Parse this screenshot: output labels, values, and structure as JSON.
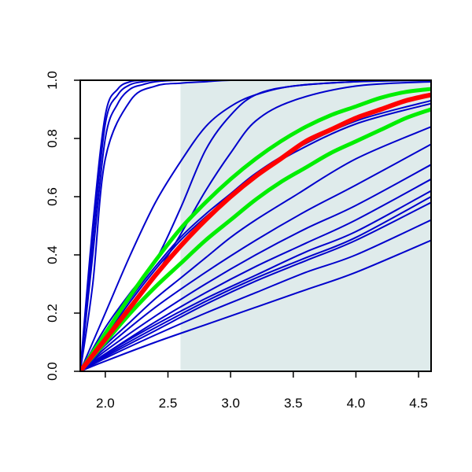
{
  "chart_data": {
    "type": "line",
    "title": "",
    "xlabel": "",
    "ylabel": "",
    "xlim": [
      1.8,
      4.6
    ],
    "ylim": [
      0,
      1
    ],
    "x_ticks": [
      2.0,
      2.5,
      3.0,
      3.5,
      4.0,
      4.5
    ],
    "x_tick_labels": [
      "2.0",
      "2.5",
      "3.0",
      "3.5",
      "4.0",
      "4.5"
    ],
    "y_ticks": [
      0.0,
      0.2,
      0.4,
      0.6,
      0.8,
      1.0
    ],
    "y_tick_labels": [
      "0.0",
      "0.2",
      "0.4",
      "0.6",
      "0.8",
      "1.0"
    ],
    "grid": false,
    "legend": "none",
    "shaded_region": {
      "x_start": 2.6,
      "x_end": 4.6,
      "y_start": 0,
      "y_end": 1,
      "color": "#dfebeb"
    },
    "colors": {
      "blue": "#0000cc",
      "red": "#ff0000",
      "green": "#00ee00",
      "axis": "#000000"
    },
    "series": [
      {
        "color": "blue",
        "width": 2,
        "x": [
          1.8,
          1.9,
          2.0,
          2.1,
          2.2,
          2.3,
          2.4,
          2.6,
          3.0,
          4.6
        ],
        "y": [
          0,
          0.5,
          0.88,
          0.97,
          0.995,
          1.0,
          1.0,
          1.0,
          1.0,
          1.0
        ]
      },
      {
        "color": "blue",
        "width": 2,
        "x": [
          1.8,
          1.9,
          2.0,
          2.1,
          2.2,
          2.3,
          2.4,
          2.6,
          3.0,
          4.6
        ],
        "y": [
          0,
          0.45,
          0.85,
          0.95,
          0.985,
          0.995,
          1.0,
          1.0,
          1.0,
          1.0
        ]
      },
      {
        "color": "blue",
        "width": 2,
        "x": [
          1.8,
          1.9,
          2.0,
          2.1,
          2.2,
          2.3,
          2.4,
          2.6,
          3.0,
          4.6
        ],
        "y": [
          0,
          0.4,
          0.8,
          0.92,
          0.97,
          0.985,
          0.995,
          1.0,
          1.0,
          1.0
        ]
      },
      {
        "color": "blue",
        "width": 2,
        "x": [
          1.8,
          1.9,
          2.0,
          2.2,
          2.4,
          2.6,
          2.8,
          3.0,
          3.4,
          4.0,
          4.6
        ],
        "y": [
          0,
          0.3,
          0.73,
          0.93,
          0.98,
          0.99,
          0.995,
          1.0,
          1.0,
          1.0,
          1.0
        ]
      },
      {
        "color": "blue",
        "width": 2,
        "x": [
          1.8,
          2.0,
          2.2,
          2.4,
          2.6,
          2.8,
          3.0,
          3.2,
          3.5,
          4.0,
          4.6
        ],
        "y": [
          0,
          0.2,
          0.4,
          0.58,
          0.72,
          0.84,
          0.91,
          0.95,
          0.98,
          0.995,
          1.0
        ]
      },
      {
        "color": "blue",
        "width": 2,
        "x": [
          1.8,
          2.0,
          2.2,
          2.4,
          2.6,
          2.8,
          3.0,
          3.2,
          3.5,
          4.0,
          4.6
        ],
        "y": [
          0,
          0.15,
          0.27,
          0.38,
          0.56,
          0.76,
          0.88,
          0.95,
          0.98,
          0.995,
          1.0
        ]
      },
      {
        "color": "blue",
        "width": 2,
        "x": [
          1.8,
          2.0,
          2.2,
          2.4,
          2.6,
          2.8,
          3.0,
          3.2,
          3.5,
          4.0,
          4.6
        ],
        "y": [
          0,
          0.12,
          0.22,
          0.33,
          0.47,
          0.62,
          0.75,
          0.86,
          0.93,
          0.98,
          0.995
        ]
      },
      {
        "color": "blue",
        "width": 2,
        "x": [
          1.8,
          2.0,
          2.2,
          2.4,
          2.6,
          2.8,
          3.0,
          3.2,
          3.5,
          4.0,
          4.6
        ],
        "y": [
          0,
          0.13,
          0.25,
          0.36,
          0.46,
          0.54,
          0.61,
          0.68,
          0.76,
          0.86,
          0.93
        ]
      },
      {
        "color": "blue",
        "width": 2,
        "x": [
          1.8,
          2.0,
          2.2,
          2.4,
          2.6,
          2.8,
          3.0,
          3.2,
          3.5,
          4.0,
          4.6
        ],
        "y": [
          0,
          0.12,
          0.24,
          0.35,
          0.45,
          0.53,
          0.6,
          0.67,
          0.75,
          0.85,
          0.92
        ]
      },
      {
        "color": "blue",
        "width": 2,
        "x": [
          1.8,
          2.0,
          2.2,
          2.4,
          2.6,
          2.8,
          3.0,
          3.2,
          3.5,
          4.0,
          4.6
        ],
        "y": [
          0,
          0.09,
          0.17,
          0.25,
          0.32,
          0.39,
          0.46,
          0.52,
          0.6,
          0.73,
          0.84
        ]
      },
      {
        "color": "blue",
        "width": 2,
        "x": [
          1.8,
          2.0,
          2.4,
          2.8,
          3.2,
          3.6,
          4.0,
          4.6
        ],
        "y": [
          0,
          0.08,
          0.22,
          0.34,
          0.45,
          0.55,
          0.64,
          0.78
        ]
      },
      {
        "color": "blue",
        "width": 2,
        "x": [
          1.8,
          2.0,
          2.4,
          2.8,
          3.2,
          3.6,
          4.0,
          4.6
        ],
        "y": [
          0,
          0.07,
          0.19,
          0.3,
          0.4,
          0.49,
          0.57,
          0.71
        ]
      },
      {
        "color": "blue",
        "width": 2,
        "x": [
          1.8,
          2.0,
          2.4,
          2.8,
          3.2,
          3.6,
          4.0,
          4.6
        ],
        "y": [
          0,
          0.06,
          0.17,
          0.27,
          0.36,
          0.44,
          0.52,
          0.66
        ]
      },
      {
        "color": "blue",
        "width": 2,
        "x": [
          1.8,
          2.0,
          2.4,
          2.8,
          3.2,
          3.6,
          4.0,
          4.6
        ],
        "y": [
          0,
          0.06,
          0.16,
          0.25,
          0.33,
          0.41,
          0.48,
          0.62
        ]
      },
      {
        "color": "blue",
        "width": 2,
        "x": [
          1.8,
          2.0,
          2.4,
          2.8,
          3.2,
          3.6,
          4.0,
          4.6
        ],
        "y": [
          0,
          0.055,
          0.15,
          0.24,
          0.32,
          0.39,
          0.46,
          0.6
        ]
      },
      {
        "color": "blue",
        "width": 2,
        "x": [
          1.8,
          2.0,
          2.4,
          2.8,
          3.2,
          3.6,
          4.0,
          4.6
        ],
        "y": [
          0,
          0.05,
          0.14,
          0.23,
          0.31,
          0.38,
          0.45,
          0.58
        ]
      },
      {
        "color": "blue",
        "width": 2,
        "x": [
          1.8,
          2.0,
          2.4,
          2.8,
          3.2,
          3.6,
          4.0,
          4.6
        ],
        "y": [
          0,
          0.045,
          0.125,
          0.2,
          0.27,
          0.34,
          0.4,
          0.52
        ]
      },
      {
        "color": "blue",
        "width": 2,
        "x": [
          1.8,
          2.0,
          2.4,
          2.8,
          3.2,
          3.6,
          4.0,
          4.6
        ],
        "y": [
          0,
          0.035,
          0.1,
          0.16,
          0.22,
          0.28,
          0.34,
          0.45
        ]
      },
      {
        "color": "green",
        "width": 5,
        "x": [
          1.8,
          2.0,
          2.2,
          2.4,
          2.6,
          2.8,
          3.0,
          3.2,
          3.4,
          3.6,
          3.8,
          4.0,
          4.2,
          4.4,
          4.6
        ],
        "y": [
          0,
          0.13,
          0.26,
          0.38,
          0.49,
          0.58,
          0.66,
          0.73,
          0.79,
          0.84,
          0.88,
          0.91,
          0.94,
          0.96,
          0.97
        ]
      },
      {
        "color": "green",
        "width": 5,
        "x": [
          1.8,
          2.0,
          2.2,
          2.4,
          2.6,
          2.8,
          3.0,
          3.2,
          3.4,
          3.6,
          3.8,
          4.0,
          4.2,
          4.4,
          4.6
        ],
        "y": [
          0,
          0.1,
          0.2,
          0.29,
          0.37,
          0.45,
          0.52,
          0.59,
          0.65,
          0.7,
          0.75,
          0.79,
          0.83,
          0.87,
          0.9
        ]
      },
      {
        "color": "red",
        "width": 6,
        "x": [
          1.8,
          2.0,
          2.2,
          2.4,
          2.6,
          2.8,
          3.0,
          3.2,
          3.4,
          3.6,
          3.8,
          4.0,
          4.2,
          4.4,
          4.6
        ],
        "y": [
          0,
          0.11,
          0.22,
          0.33,
          0.43,
          0.52,
          0.6,
          0.67,
          0.73,
          0.79,
          0.83,
          0.87,
          0.9,
          0.93,
          0.95
        ]
      }
    ]
  }
}
